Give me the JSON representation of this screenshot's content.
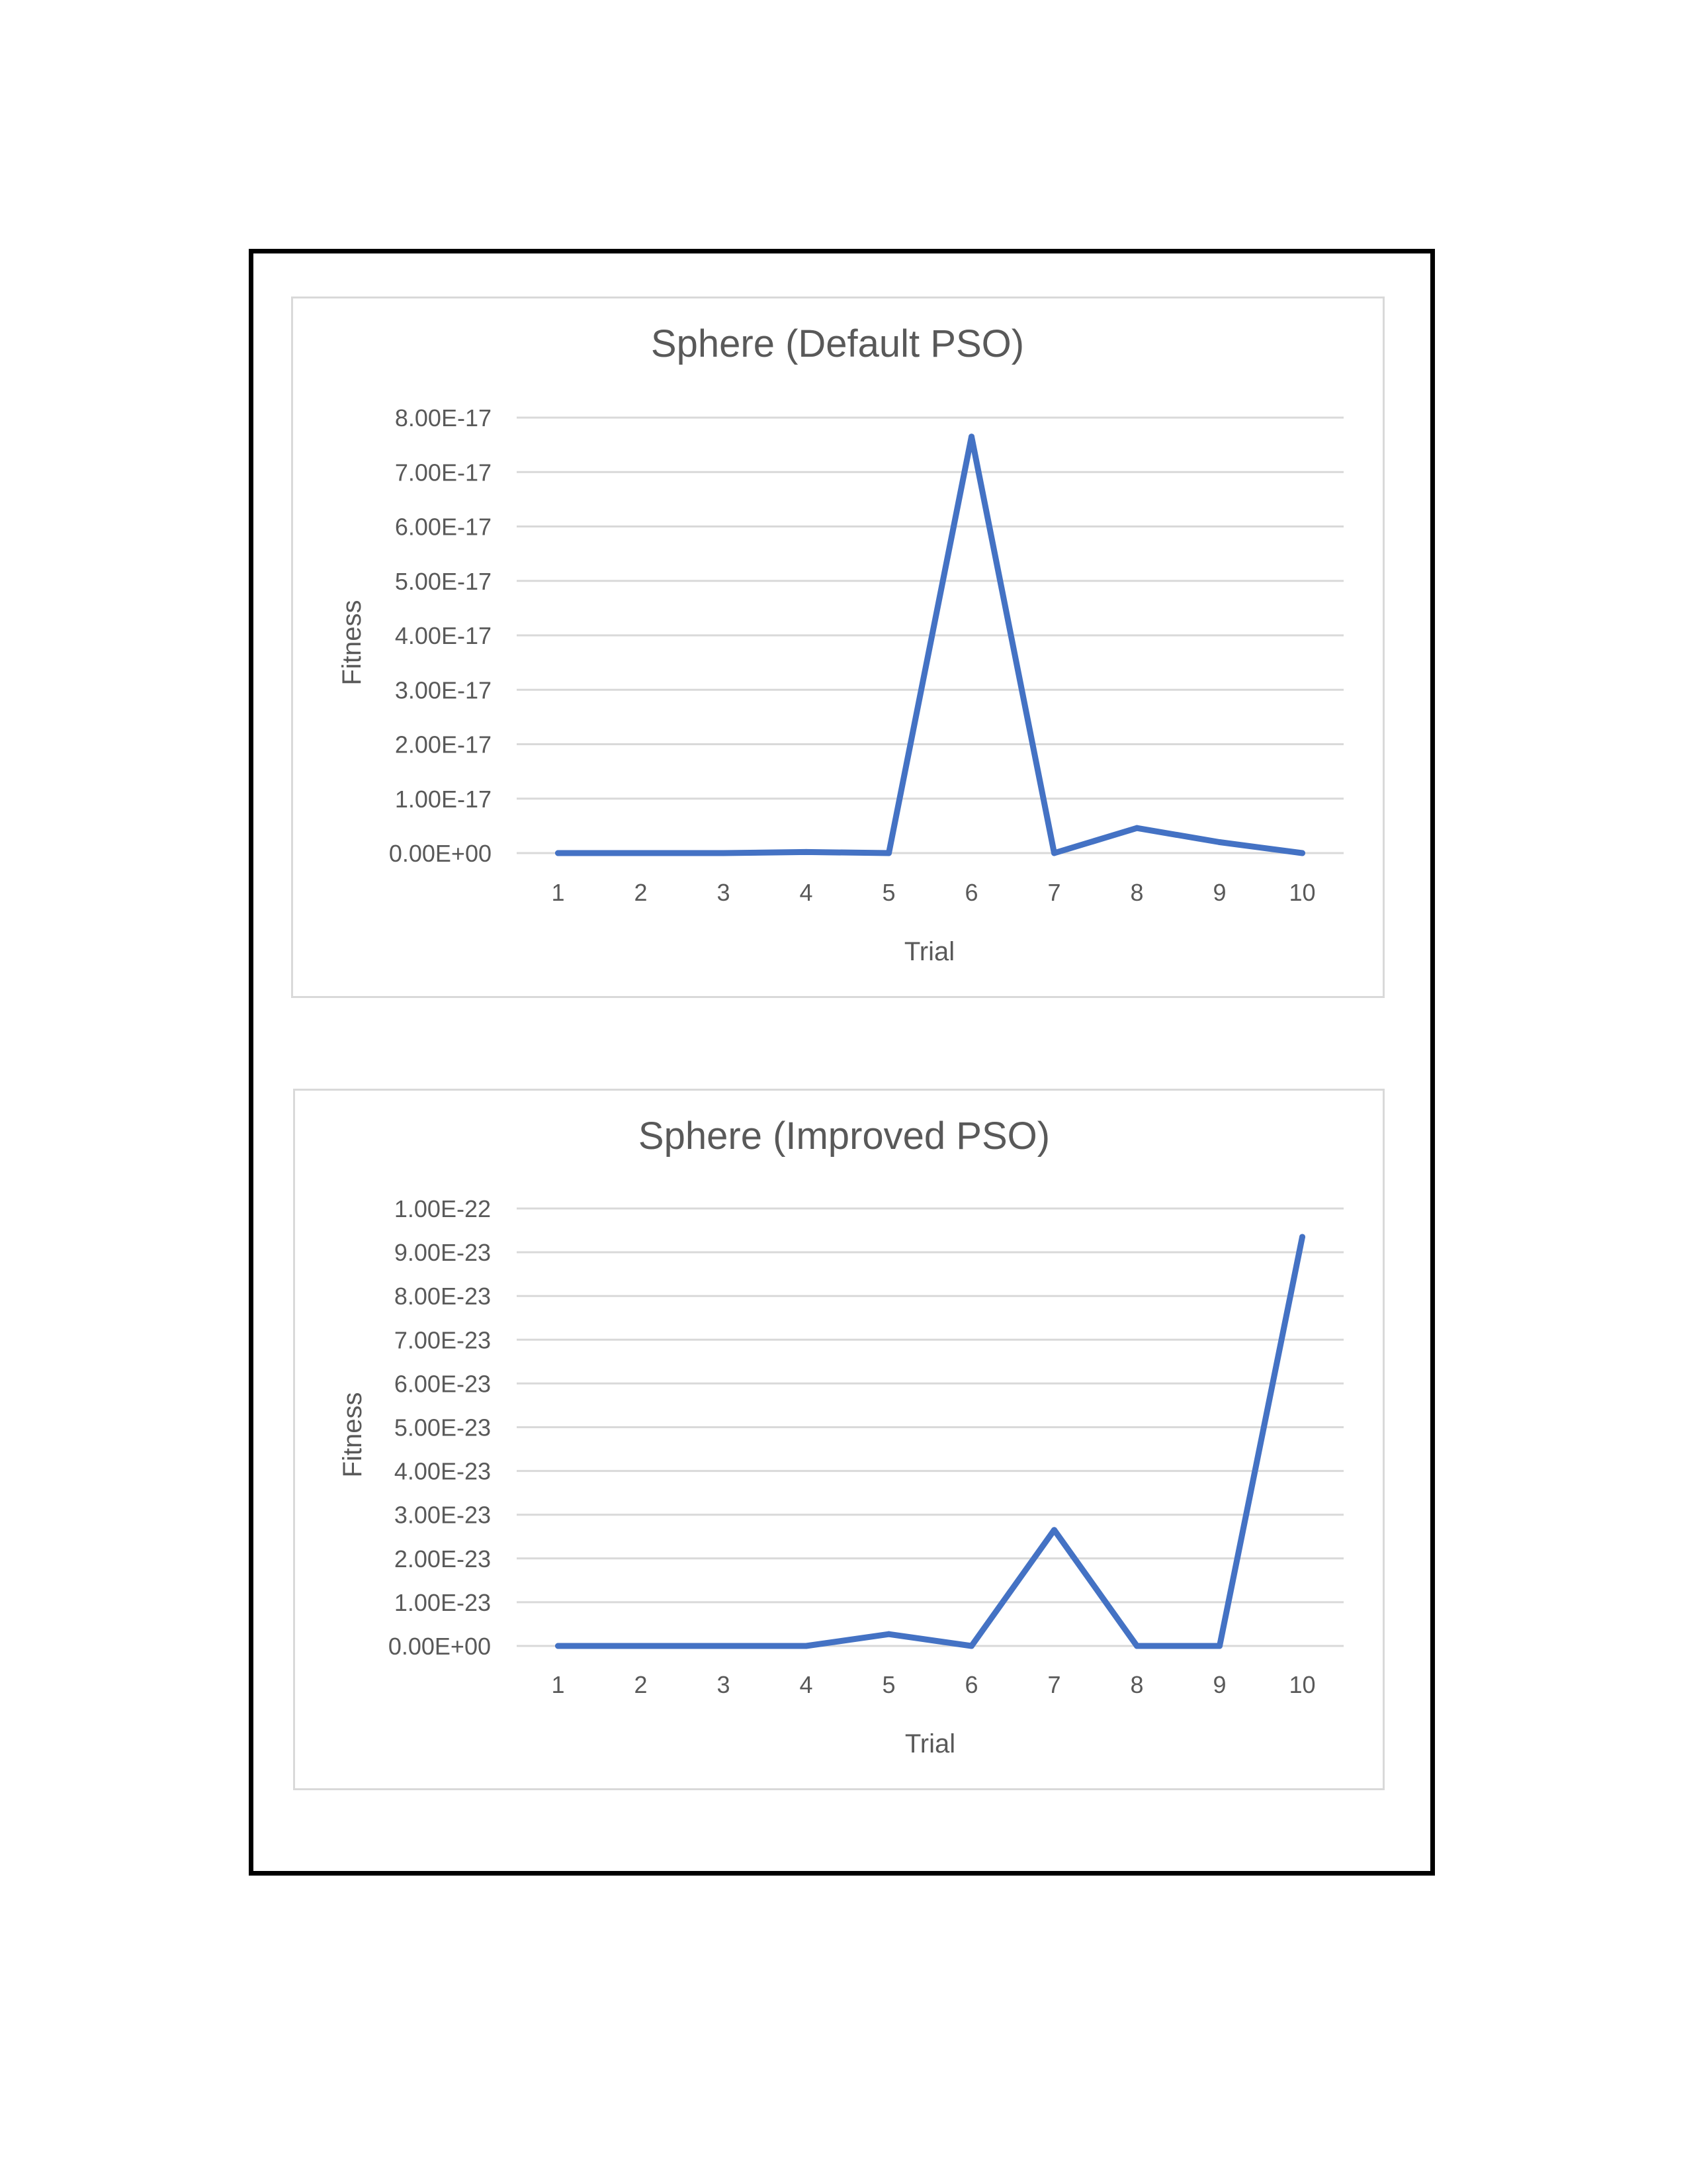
{
  "chart_data": [
    {
      "type": "line",
      "title": "Sphere (Default PSO)",
      "xlabel": "Trial",
      "ylabel": "Fitness",
      "categories": [
        "1",
        "2",
        "3",
        "4",
        "5",
        "6",
        "7",
        "8",
        "9",
        "10"
      ],
      "series": [
        {
          "values": [
            0,
            0,
            0,
            2e-19,
            0,
            7.65e-17,
            0,
            4.6e-18,
            2e-18,
            0
          ]
        }
      ],
      "ylim": [
        0,
        8e-17
      ],
      "yticks": [
        "0.00E+00",
        "1.00E-17",
        "2.00E-17",
        "3.00E-17",
        "4.00E-17",
        "5.00E-17",
        "6.00E-17",
        "7.00E-17",
        "8.00E-17"
      ],
      "grid": true,
      "legend": "none",
      "line_color": "#4472c4"
    },
    {
      "type": "line",
      "title": "Sphere (Improved PSO)",
      "xlabel": "Trial",
      "ylabel": "Fitness",
      "categories": [
        "1",
        "2",
        "3",
        "4",
        "5",
        "6",
        "7",
        "8",
        "9",
        "10"
      ],
      "series": [
        {
          "values": [
            0,
            0,
            0,
            0,
            2.7e-24,
            0,
            2.65e-23,
            0,
            0,
            9.35e-23
          ]
        }
      ],
      "ylim": [
        0,
        1e-22
      ],
      "yticks": [
        "0.00E+00",
        "1.00E-23",
        "2.00E-23",
        "3.00E-23",
        "4.00E-23",
        "5.00E-23",
        "6.00E-23",
        "7.00E-23",
        "8.00E-23",
        "9.00E-23",
        "1.00E-22"
      ],
      "grid": true,
      "legend": "none",
      "line_color": "#4472c4"
    }
  ]
}
